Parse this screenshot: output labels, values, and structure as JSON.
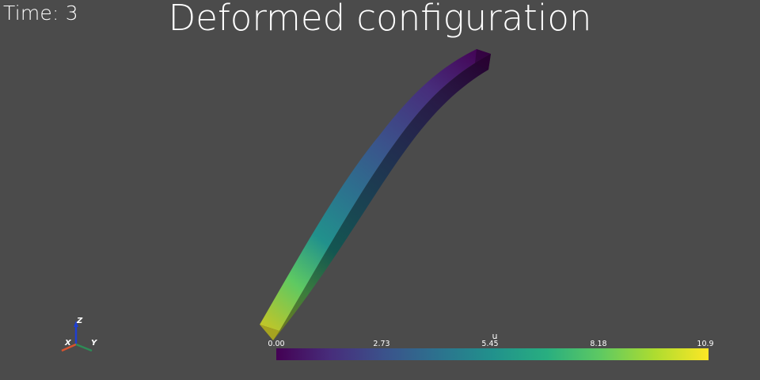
{
  "viewer": {
    "time_label": "Time: 3",
    "title": "Deformed configuration",
    "background_color": "#4b4b4b"
  },
  "orientation_axes": {
    "x_label": "X",
    "y_label": "Y",
    "z_label": "Z",
    "x_color": "#d9532f",
    "y_color": "#2e8b57",
    "z_color": "#1f3fd1"
  },
  "scalar_bar": {
    "title": "u",
    "tick_labels": [
      "0.00",
      "2.73",
      "5.45",
      "8.18",
      "10.9"
    ],
    "range": [
      0.0,
      10.9
    ],
    "colormap": "viridis"
  }
}
